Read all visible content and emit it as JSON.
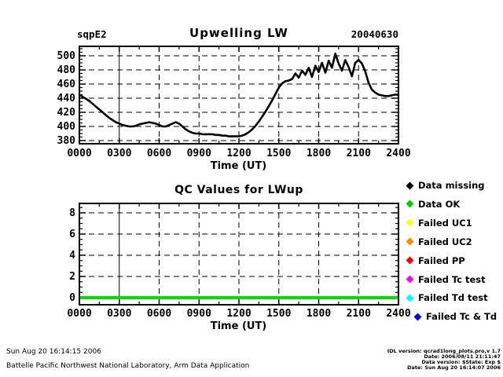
{
  "header": {
    "site": "sqpE2",
    "date": "20040630"
  },
  "chart_data": [
    {
      "type": "line",
      "title": "Upwelling LW",
      "xlabel": "Time (UT)",
      "ylabel": "",
      "x_tick_labels": [
        "0000",
        "0300",
        "0600",
        "0900",
        "1200",
        "1500",
        "1800",
        "2100",
        "2400"
      ],
      "x_range_minutes": [
        0,
        1440
      ],
      "y_ticks": [
        380,
        400,
        420,
        440,
        460,
        480,
        500
      ],
      "ylim": [
        375,
        513
      ],
      "grid": "dashed",
      "legend_position": "none",
      "series": [
        {
          "name": "LWup",
          "color": "#000000",
          "x_start_minutes": 0,
          "x_step_minutes": 15,
          "values": [
            445,
            442,
            439,
            436,
            432,
            428,
            424,
            420,
            416,
            412,
            409,
            406,
            404,
            402,
            401,
            400,
            400,
            401,
            403,
            404,
            405,
            406,
            405,
            404,
            402,
            400,
            400,
            402,
            404,
            406,
            404,
            400,
            396,
            393,
            391,
            390,
            390,
            389,
            389,
            389,
            389,
            388,
            388,
            387,
            387,
            386,
            386,
            386,
            386,
            387,
            389,
            392,
            396,
            401,
            407,
            414,
            421,
            429,
            437,
            446,
            455,
            461,
            464,
            465,
            467,
            475,
            469,
            479,
            473,
            483,
            470,
            486,
            477,
            490,
            476,
            493,
            483,
            503,
            489,
            479,
            494,
            484,
            471,
            490,
            494,
            489,
            478,
            462,
            452,
            448,
            445,
            444,
            443,
            443,
            444,
            445,
            445
          ]
        }
      ]
    },
    {
      "type": "line",
      "title": "QC Values for LWup",
      "xlabel": "Time (UT)",
      "ylabel": "",
      "x_tick_labels": [
        "0000",
        "0300",
        "0600",
        "0900",
        "1200",
        "1500",
        "1800",
        "2100",
        "2400"
      ],
      "x_range_minutes": [
        0,
        1440
      ],
      "y_ticks": [
        0,
        2,
        4,
        6,
        8
      ],
      "ylim": [
        -0.7,
        8.9
      ],
      "grid": "dashed",
      "legend_position": "right",
      "series": [
        {
          "name": "Data OK",
          "color": "#00e000",
          "x_start_minutes": 0,
          "x_step_minutes": 1440,
          "values": [
            0,
            0
          ]
        }
      ]
    }
  ],
  "legend": {
    "items": [
      {
        "label": "Data missing",
        "color": "#000000"
      },
      {
        "label": "Data OK",
        "color": "#00cc00"
      },
      {
        "label": "Failed UC1",
        "color": "#ffff00"
      },
      {
        "label": "Failed UC2",
        "color": "#ff8800"
      },
      {
        "label": "Failed PP",
        "color": "#ff0000"
      },
      {
        "label": "Failed Tc test",
        "color": "#ff00ff"
      },
      {
        "label": "Failed Td test",
        "color": "#00ffff"
      },
      {
        "label": "Failed Tc & Td",
        "color": "#0000ff"
      }
    ]
  },
  "footer": {
    "left_lines": [
      "Sun Aug 20 16:14:15 2006",
      "Battelle Pacific Northwest National Laboratory, Arm Data Application"
    ],
    "right_lines": [
      "IDL version: qcrad1long_plots.pro,v 1.7",
      "Date: 2006/08/11 21:11:47",
      "Data version: $State: Exp $",
      "Date: Sun Aug 20 16:14:07 2006"
    ]
  }
}
